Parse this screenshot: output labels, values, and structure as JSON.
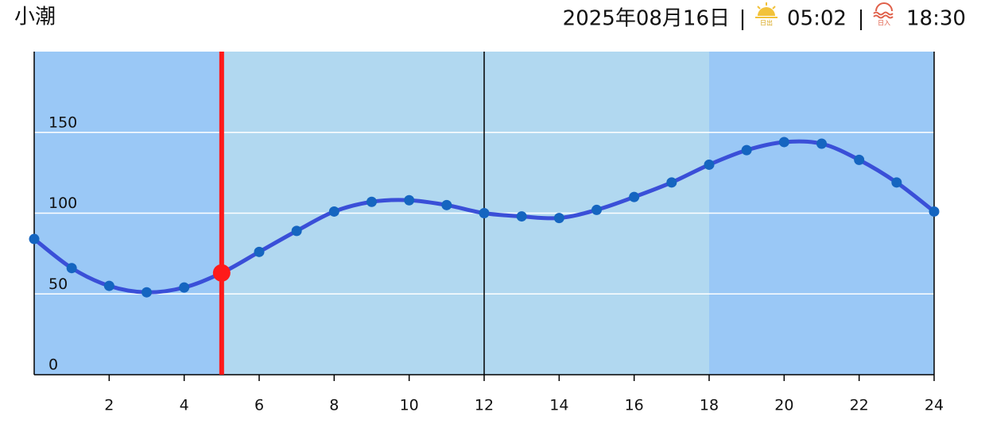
{
  "header": {
    "tide_name": "小潮",
    "date": "2025年08月16日",
    "separator": "|",
    "sunrise_icon_label": "日出",
    "sunrise": "05:02",
    "sunset_icon_label": "日入",
    "sunset": "18:30"
  },
  "chart_data": {
    "type": "line",
    "x": [
      0,
      1,
      2,
      3,
      4,
      5,
      6,
      7,
      8,
      9,
      10,
      11,
      12,
      13,
      14,
      15,
      16,
      17,
      18,
      19,
      20,
      21,
      22,
      23,
      24
    ],
    "series": [
      {
        "color": "#3a4fd8",
        "point_color": "#1565c0",
        "values": [
          84,
          66,
          55,
          51,
          54,
          63,
          76,
          89,
          101,
          107,
          108,
          105,
          100,
          98,
          97,
          102,
          110,
          119,
          130,
          139,
          144,
          143,
          133,
          119,
          101
        ]
      }
    ],
    "xlim": [
      0,
      24
    ],
    "xticks": [
      2,
      4,
      6,
      8,
      10,
      12,
      14,
      16,
      18,
      20,
      22,
      24
    ],
    "ylim": [
      0,
      200
    ],
    "yticks": [
      0,
      50,
      100,
      150
    ],
    "grid": true,
    "daylight": [
      5,
      18
    ],
    "day_color": "#b1d8f0",
    "night_color": "#9ac8f6",
    "now": 5,
    "now_color": "#ff1a1a",
    "noon_line": 12
  }
}
